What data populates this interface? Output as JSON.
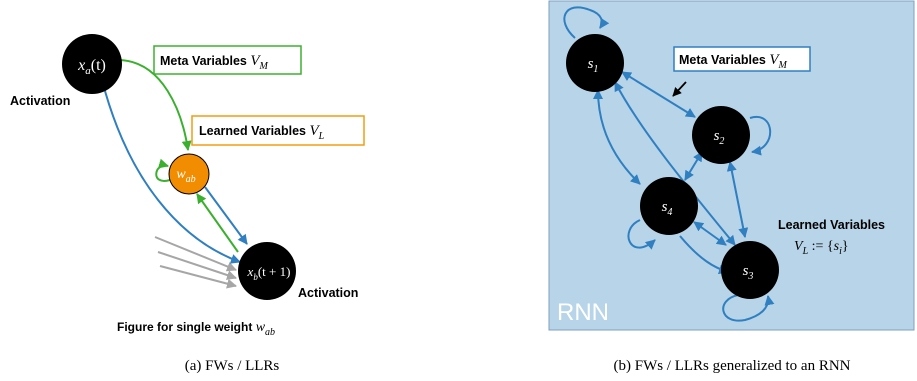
{
  "colors": {
    "node": "#000000",
    "weight_node": "#f28c00",
    "blue_edge": "#2f7fc1",
    "green_edge": "#3bb02f",
    "gray_edge": "#a6a6a6",
    "meta_box": "#3bb02f",
    "learned_box": "#f39c12",
    "rnn_bg": "#b7d4e8",
    "rnn_border": "#7f9fbf",
    "rnn_meta_box": "#2f7fc1",
    "rnn_label": "#ffffff"
  },
  "panel_a": {
    "node_xa": {
      "var": "x",
      "sub": "a",
      "suffix": "(t)"
    },
    "node_xb": {
      "var": "x",
      "sub": "b",
      "suffix": "(t + 1)"
    },
    "node_w": {
      "var": "w",
      "sub": "ab"
    },
    "activation_top": "Activation",
    "activation_bottom": "Activation",
    "meta_box": {
      "text": "Meta Variables ",
      "var": "V",
      "sub": "M"
    },
    "learned_box": {
      "text": "Learned Variables ",
      "var": "V",
      "sub": "L"
    },
    "figure_note": {
      "text": "Figure for single weight ",
      "var": "w",
      "sub": "ab"
    },
    "caption": "(a) FWs / LLRs"
  },
  "panel_b": {
    "rnn_label": "RNN",
    "meta_box": {
      "text": "Meta Variables ",
      "var": "V",
      "sub": "M"
    },
    "nodes": [
      {
        "var": "s",
        "sub": "1"
      },
      {
        "var": "s",
        "sub": "2"
      },
      {
        "var": "s",
        "sub": "4"
      },
      {
        "var": "s",
        "sub": "3"
      }
    ],
    "learned_title": "Learned Variables",
    "learned_formula": {
      "lhs_var": "V",
      "lhs_sub": "L",
      "op": " := {",
      "var": "s",
      "sub": "i",
      "close": "}"
    },
    "caption": "(b) FWs / LLRs generalized to an RNN"
  }
}
